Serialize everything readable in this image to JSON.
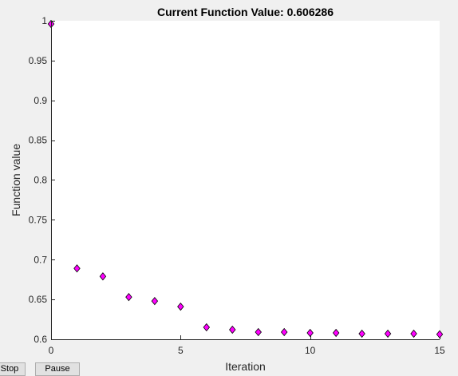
{
  "chart_data": {
    "type": "scatter",
    "title": "Current Function Value: 0.606286",
    "xlabel": "Iteration",
    "ylabel": "Function value",
    "xlim": [
      0,
      15
    ],
    "ylim": [
      0.6,
      1
    ],
    "xticks": [
      0,
      5,
      10,
      15
    ],
    "xtick_labels": [
      "0",
      "5",
      "10",
      "15"
    ],
    "yticks": [
      0.6,
      0.65,
      0.7,
      0.75,
      0.8,
      0.85,
      0.9,
      0.95,
      1
    ],
    "ytick_labels": [
      "0.6",
      "0.65",
      "0.7",
      "0.75",
      "0.8",
      "0.85",
      "0.9",
      "0.95",
      "1"
    ],
    "grid": false,
    "marker": "diamond",
    "marker_color": "#ff00ff",
    "marker_edge_color": "#000000",
    "x": [
      0,
      1,
      2,
      3,
      4,
      5,
      6,
      7,
      8,
      9,
      10,
      11,
      12,
      13,
      14,
      15
    ],
    "y": [
      0.996,
      0.689,
      0.679,
      0.653,
      0.648,
      0.641,
      0.615,
      0.612,
      0.609,
      0.609,
      0.608,
      0.608,
      0.607,
      0.607,
      0.607,
      0.6063
    ]
  },
  "controls": {
    "stop_label": "Stop",
    "pause_label": "Pause"
  },
  "colors": {
    "figure_bg": "#f0f0f0",
    "axes_bg": "#ffffff",
    "axis_line": "#262626"
  }
}
